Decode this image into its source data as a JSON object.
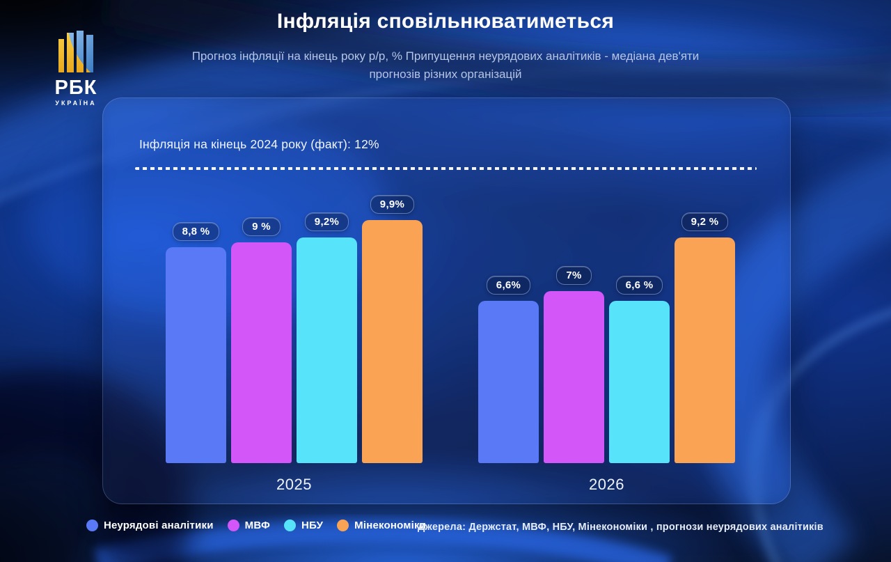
{
  "brand": {
    "acronym": "РБК",
    "region": "УКРАЇНА"
  },
  "header": {
    "title": "Інфляція сповільнюватиметься",
    "subtitle": "Прогноз інфляції на кінець року р/р, % Припущення неурядових аналітиків - медіана дев'яти прогнозів різних організацій"
  },
  "card": {
    "fact_label": "Інфляція на кінець 2024 року (факт): 12%"
  },
  "chart_data": {
    "type": "bar",
    "title": "Інфляція сповільнюватиметься",
    "subtitle": "Прогноз інфляції на кінець року р/р, %",
    "categories": [
      "2025",
      "2026"
    ],
    "series": [
      {
        "key": "non-gov-analysts",
        "name": "Неурядові аналітики",
        "color": "#5a79f7",
        "values": [
          8.8,
          6.6
        ],
        "labels": [
          "8,8 %",
          "6,6%"
        ]
      },
      {
        "key": "imf",
        "name": "МВФ",
        "color": "#d356f8",
        "values": [
          9,
          7
        ],
        "labels": [
          "9 %",
          "7%"
        ]
      },
      {
        "key": "nbu",
        "name": "НБУ",
        "color": "#57e3fa",
        "values": [
          9.2,
          6.6
        ],
        "labels": [
          "9,2%",
          "6,6 %"
        ]
      },
      {
        "key": "min-economy",
        "name": "Мінекономіки",
        "color": "#fba355",
        "values": [
          9.9,
          9.2
        ],
        "labels": [
          "9,9%",
          "9,2 %"
        ]
      }
    ],
    "reference_line": {
      "value": 12,
      "label": "Інфляція на кінець 2024 року (факт): 12%"
    },
    "ylim": [
      0,
      12
    ],
    "grid": false,
    "legend_position": "bottom"
  },
  "footer": {
    "source": "Джерела: Держстат, МВФ, НБУ,  Мінекономіки , прогнози неурядових аналітиків"
  }
}
